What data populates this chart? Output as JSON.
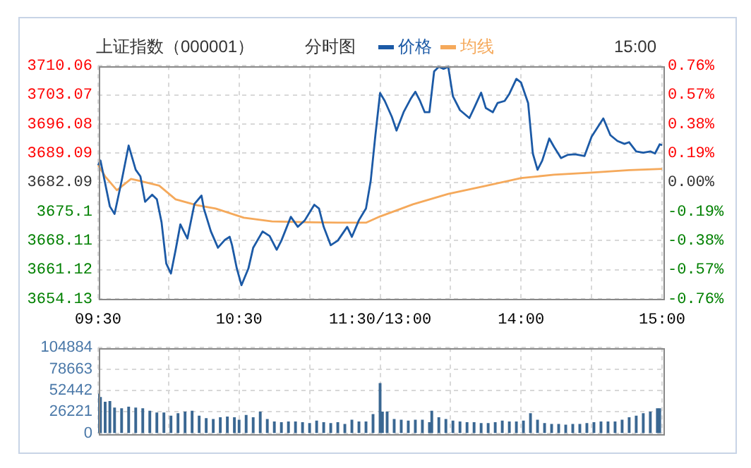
{
  "chart_data": [
    {
      "type": "line",
      "title": "上证指数（000001）",
      "subtitle": "分时图",
      "annotations": [
        "15:00"
      ],
      "legend": "top",
      "grid": true,
      "categories": [
        "09:30",
        null,
        null,
        null,
        null,
        null,
        null,
        null,
        null,
        null,
        null,
        null,
        null,
        null,
        null,
        null,
        null,
        null,
        null,
        null,
        null,
        null,
        null,
        null,
        null,
        null,
        null,
        null,
        null,
        null,
        null,
        null,
        null,
        null,
        null,
        null,
        null,
        null,
        null,
        null,
        null,
        null,
        null,
        null,
        null,
        null,
        null,
        null,
        null,
        null,
        null,
        null,
        null,
        null,
        null,
        null,
        null,
        null,
        null,
        null,
        "10:30",
        null,
        null,
        null,
        null,
        null,
        null,
        null,
        null,
        null,
        null,
        null,
        null,
        null,
        null,
        null,
        null,
        null,
        null,
        null,
        null,
        null,
        null,
        null,
        null,
        null,
        null,
        null,
        null,
        null,
        null,
        null,
        null,
        null,
        null,
        null,
        null,
        null,
        null,
        null,
        null,
        null,
        null,
        null,
        null,
        null,
        null,
        null,
        null,
        null,
        null,
        null,
        null,
        null,
        null,
        null,
        null,
        null,
        null,
        null,
        "11:30/13:00",
        null,
        null,
        null,
        null,
        null,
        null,
        null,
        null,
        null,
        null,
        null,
        null,
        null,
        null,
        null,
        null,
        null,
        null,
        null,
        null,
        null,
        null,
        null,
        null,
        null,
        null,
        null,
        null,
        null,
        null,
        null,
        null,
        null,
        null,
        null,
        null,
        null,
        null,
        null,
        null,
        null,
        null,
        null,
        null,
        null,
        null,
        null,
        null,
        null,
        null,
        null,
        null,
        null,
        null,
        null,
        null,
        null,
        null,
        null,
        "14:00",
        null,
        null,
        null,
        null,
        null,
        null,
        null,
        null,
        null,
        null,
        null,
        null,
        null,
        null,
        null,
        null,
        null,
        null,
        null,
        null,
        null,
        null,
        null,
        null,
        null,
        null,
        null,
        null,
        null,
        null,
        null,
        null,
        null,
        null,
        null,
        null,
        null,
        null,
        null,
        null,
        null,
        null,
        null,
        null,
        null,
        null,
        null,
        null,
        null,
        null,
        null,
        null,
        null,
        null,
        null,
        null,
        null,
        null,
        null,
        "15:00"
      ],
      "ylim": [
        3654.13,
        3710.06
      ],
      "yticks": [
        3654.13,
        3661.12,
        3668.11,
        3675.1,
        3682.09,
        3689.09,
        3696.08,
        3703.07,
        3710.06
      ],
      "y2lim": [
        -0.76,
        0.76
      ],
      "y2ticks": [
        {
          "value": -0.76,
          "label": "-0.76%"
        },
        {
          "value": -0.57,
          "label": "-0.57%"
        },
        {
          "value": -0.38,
          "label": "-0.38%"
        },
        {
          "value": -0.19,
          "label": "-0.19%"
        },
        {
          "value": 0,
          "label": "0.00%"
        },
        {
          "value": 0.19,
          "label": "0.19%"
        },
        {
          "value": 0.38,
          "label": "0.38%"
        },
        {
          "value": 0.57,
          "label": "0.57%"
        },
        {
          "value": 0.76,
          "label": "0.76%"
        }
      ],
      "series": [
        {
          "name": "价格",
          "color": "#1c5aa6",
          "values": [
            3686.2,
            3687.3,
            3684.6,
            null,
            null,
            3676.3,
            null,
            3674.5,
            null,
            null,
            3682.4,
            null,
            null,
            3690.9,
            null,
            null,
            3685.1,
            null,
            3683.5,
            null,
            3677.4,
            null,
            null,
            3679.1,
            null,
            3678.0,
            null,
            3672.5,
            null,
            3662.6,
            null,
            3660.2,
            null,
            3665.9,
            null,
            3672.0,
            null,
            3669.7,
            3668.6,
            null,
            null,
            3676.9,
            null,
            null,
            3678.9,
            3675.8,
            null,
            null,
            3670.3,
            null,
            null,
            3666.4,
            null,
            null,
            3668.3,
            null,
            3669.0,
            3667.0,
            null,
            3661.5,
            null,
            3657.4,
            null,
            null,
            3661.5,
            null,
            3666.4,
            null,
            null,
            null,
            3670.3,
            null,
            null,
            3669.2,
            null,
            null,
            3665.9,
            null,
            3668.1,
            null,
            null,
            null,
            3673.8,
            null,
            null,
            3671.4,
            null,
            null,
            3673.0,
            null,
            null,
            null,
            3676.7,
            null,
            3675.8,
            null,
            3671.4,
            null,
            null,
            3667.0,
            null,
            null,
            3668.1,
            null,
            null,
            null,
            3671.4,
            null,
            3669.0,
            null,
            null,
            3673.0,
            null,
            null,
            3675.8,
            null,
            3682.4,
            null,
            3693.4,
            null,
            3703.5,
            null,
            3701.6,
            null,
            null,
            3697.8,
            null,
            3694.5,
            null,
            null,
            3698.9,
            null,
            null,
            3702.1,
            null,
            3703.8,
            null,
            3701.6,
            null,
            3698.9,
            null,
            3698.9,
            null,
            3708.7,
            null,
            3709.8,
            null,
            3709.3,
            null,
            3709.8,
            null,
            3702.7,
            null,
            null,
            3699.4,
            null,
            null,
            null,
            3697.5,
            null,
            3699.9,
            null,
            null,
            3703.6,
            null,
            3699.9,
            null,
            null,
            3698.9,
            null,
            3701.1,
            null,
            null,
            3701.6,
            null,
            3703.3,
            null,
            null,
            3706.9,
            null,
            3706.0,
            null,
            null,
            3701.1,
            null,
            3689.0,
            null,
            3685.1,
            null,
            3687.3,
            null,
            null,
            3692.6,
            null,
            3690.6,
            null,
            null,
            3687.9,
            null,
            null,
            3688.7,
            null,
            null,
            3688.8,
            null,
            null,
            null,
            3688.4,
            null,
            null,
            3693.0,
            null,
            null,
            null,
            null,
            3697.4,
            null,
            null,
            3693.4,
            null,
            null,
            3692.0,
            null,
            null,
            3691.3,
            null,
            3691.7,
            null,
            null,
            3689.5,
            null,
            null,
            3689.2,
            null,
            null,
            3689.5,
            null,
            3689.0,
            null,
            3691.2,
            3691.0
          ]
        },
        {
          "name": "均线",
          "color": "#f5a95b",
          "values": [
            3686.2,
            null,
            null,
            3683.5,
            null,
            null,
            null,
            null,
            3680.2,
            null,
            null,
            null,
            null,
            null,
            3682.9,
            null,
            null,
            null,
            3682.4,
            null,
            null,
            null,
            null,
            null,
            null,
            null,
            3681.3,
            null,
            null,
            null,
            null,
            null,
            null,
            3678.0,
            null,
            null,
            null,
            null,
            null,
            null,
            null,
            null,
            3676.6,
            null,
            null,
            null,
            null,
            null,
            null,
            null,
            3675.8,
            null,
            null,
            null,
            null,
            null,
            null,
            null,
            null,
            null,
            null,
            null,
            3673.6,
            null,
            null,
            null,
            null,
            null,
            null,
            null,
            null,
            null,
            null,
            null,
            3672.7,
            null,
            null,
            null,
            null,
            null,
            null,
            null,
            null,
            null,
            null,
            null,
            null,
            null,
            null,
            null,
            3672.5,
            null,
            null,
            null,
            null,
            null,
            null,
            null,
            null,
            null,
            null,
            null,
            3672.4,
            null,
            null,
            null,
            null,
            null,
            null,
            null,
            null,
            null,
            null,
            null,
            3672.4,
            null,
            null,
            null,
            null,
            null,
            3673.9,
            null,
            null,
            null,
            null,
            null,
            null,
            null,
            null,
            null,
            null,
            null,
            null,
            null,
            3676.8,
            null,
            null,
            null,
            null,
            null,
            null,
            null,
            null,
            null,
            null,
            null,
            null,
            null,
            null,
            3679.3,
            null,
            null,
            null,
            null,
            null,
            null,
            null,
            null,
            null,
            null,
            null,
            null,
            null,
            null,
            3681.1,
            null,
            null,
            null,
            null,
            null,
            null,
            null,
            null,
            null,
            null,
            null,
            null,
            null,
            null,
            null,
            3683.1,
            null,
            null,
            null,
            null,
            null,
            null,
            null,
            null,
            null,
            null,
            null,
            null,
            null,
            3683.9,
            null,
            null,
            null,
            null,
            null,
            null,
            null,
            null,
            null,
            null,
            null,
            null,
            null,
            null,
            null,
            3684.4,
            null,
            null,
            null,
            null,
            null,
            null,
            null,
            null,
            null,
            null,
            null,
            null,
            null,
            null,
            null,
            3685.0,
            null,
            null,
            null,
            null,
            null,
            null,
            null,
            null,
            null,
            null,
            null,
            null,
            null,
            3685.3
          ]
        }
      ]
    },
    {
      "type": "bar",
      "color": "#3a6792",
      "grid": true,
      "tick_labels": "y",
      "categories": [
        null,
        null,
        null,
        null,
        null,
        null,
        null,
        null,
        null,
        null,
        null,
        null,
        null,
        null,
        null,
        null,
        null,
        null,
        null,
        null,
        null,
        null,
        null,
        null,
        null,
        null,
        null,
        null,
        null,
        null,
        null,
        null,
        null,
        null,
        null,
        null,
        null,
        null,
        null,
        null,
        null,
        null,
        null,
        null,
        null,
        null,
        null,
        null,
        null,
        null,
        null,
        null,
        null,
        null,
        null,
        null,
        null,
        null,
        null,
        null,
        null,
        null,
        null,
        null,
        null,
        null,
        null,
        null,
        null,
        null,
        null,
        null,
        null,
        null,
        null,
        null,
        null,
        null,
        null,
        null,
        null,
        null,
        null,
        null,
        null,
        null,
        null,
        null,
        null,
        null,
        null,
        null,
        null,
        null,
        null,
        null,
        null,
        null,
        null,
        null,
        null,
        null,
        null,
        null,
        null,
        null,
        null,
        null,
        null,
        null,
        null,
        null,
        null,
        null,
        null,
        null,
        null,
        null,
        null,
        null,
        null,
        null,
        null,
        null,
        null,
        null,
        null,
        null,
        null,
        null,
        null,
        null,
        null,
        null,
        null,
        null,
        null,
        null,
        null,
        null,
        null,
        null,
        null,
        null,
        null,
        null,
        null,
        null,
        null,
        null,
        null,
        null,
        null,
        null,
        null,
        null,
        null,
        null,
        null,
        null,
        null,
        null,
        null,
        null,
        null,
        null,
        null,
        null,
        null,
        null,
        null,
        null,
        null,
        null,
        null,
        null,
        null,
        null,
        null,
        null,
        null,
        null,
        null,
        null,
        null,
        null,
        null,
        null,
        null,
        null,
        null,
        null,
        null,
        null,
        null,
        null,
        null,
        null,
        null,
        null,
        null,
        null,
        null,
        null,
        null,
        null,
        null,
        null,
        null,
        null,
        null,
        null,
        null,
        null,
        null,
        null,
        null,
        null,
        null,
        null,
        null,
        null,
        null,
        null,
        null,
        null,
        null,
        null,
        null,
        null,
        null,
        null,
        null,
        null,
        null,
        null,
        null,
        null,
        null,
        null,
        null
      ],
      "ylim": [
        0,
        104884
      ],
      "yticks": [
        0,
        26221,
        52442,
        78663,
        104884
      ],
      "values": [
        48000,
        44000,
        null,
        38000,
        null,
        39000,
        null,
        31000,
        null,
        null,
        30000,
        null,
        null,
        32000,
        null,
        null,
        31000,
        null,
        null,
        30000,
        null,
        null,
        27000,
        null,
        null,
        25000,
        null,
        null,
        25000,
        null,
        null,
        21000,
        null,
        null,
        24000,
        null,
        null,
        26000,
        null,
        null,
        27000,
        null,
        null,
        21000,
        null,
        null,
        18000,
        null,
        null,
        17000,
        null,
        null,
        19000,
        null,
        null,
        20000,
        null,
        null,
        19000,
        null,
        16000,
        null,
        null,
        22000,
        null,
        null,
        19000,
        null,
        null,
        26000,
        null,
        null,
        17000,
        null,
        null,
        14000,
        null,
        null,
        13000,
        null,
        null,
        14000,
        null,
        null,
        14000,
        null,
        null,
        13000,
        null,
        null,
        12000,
        null,
        null,
        15000,
        null,
        null,
        13000,
        null,
        null,
        12000,
        null,
        null,
        13000,
        null,
        null,
        11000,
        null,
        null,
        16000,
        null,
        null,
        14000,
        null,
        null,
        14000,
        null,
        null,
        23000,
        null,
        null,
        61000,
        26000,
        null,
        26000,
        null,
        null,
        17000,
        null,
        null,
        16000,
        null,
        null,
        15000,
        null,
        null,
        16000,
        null,
        null,
        16000,
        null,
        null,
        13000,
        27000,
        null,
        null,
        19000,
        null,
        null,
        17000,
        null,
        null,
        15000,
        null,
        null,
        14000,
        null,
        null,
        13000,
        null,
        null,
        13000,
        null,
        null,
        12000,
        null,
        null,
        12000,
        null,
        null,
        13000,
        null,
        null,
        15000,
        null,
        null,
        14000,
        null,
        null,
        14000,
        null,
        null,
        15000,
        null,
        null,
        24000,
        null,
        null,
        16000,
        null,
        null,
        12000,
        null,
        null,
        11000,
        null,
        null,
        11000,
        null,
        null,
        10000,
        null,
        null,
        11000,
        null,
        null,
        11000,
        null,
        null,
        12000,
        null,
        null,
        13000,
        null,
        null,
        14000,
        null,
        null,
        14000,
        null,
        null,
        14000,
        null,
        null,
        16000,
        null,
        null,
        19000,
        null,
        null,
        21000,
        null,
        null,
        24000,
        null,
        null,
        26000,
        null,
        null,
        30000,
        30000,
        null
      ]
    }
  ]
}
